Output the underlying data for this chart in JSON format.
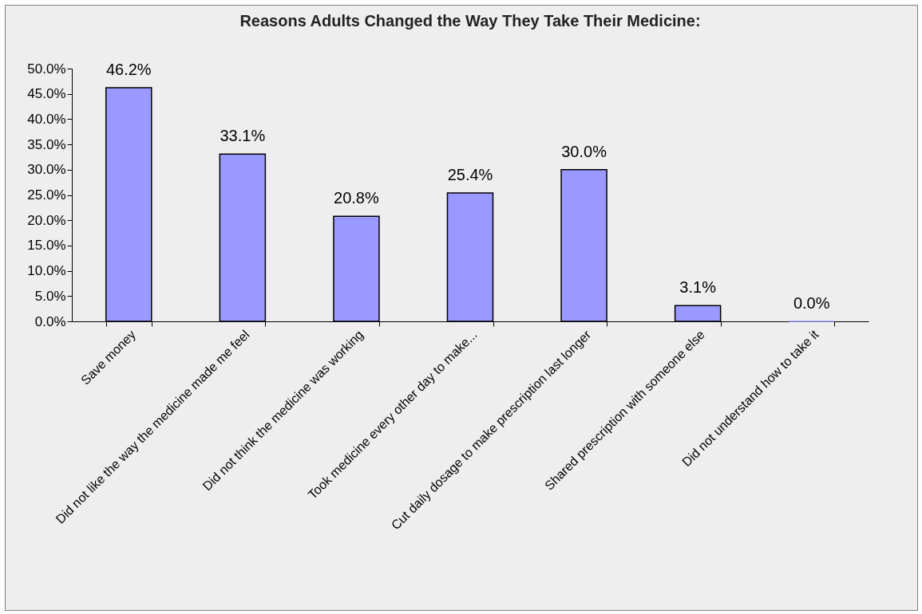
{
  "chart_data": {
    "type": "bar",
    "title": "Reasons Adults Changed the Way They Take Their Medicine:",
    "categories": [
      "Save money",
      "Did not like the way the medicine made me feel",
      "Did not think the medicine was working",
      "Took medicine every other day to make...",
      "Cut daily dosage to make prescription last longer",
      "Shared prescription with someone else",
      "Did not understand how to take it"
    ],
    "values": [
      46.2,
      33.1,
      20.8,
      25.4,
      30.0,
      3.1,
      0.0
    ],
    "value_labels": [
      "46.2%",
      "33.1%",
      "20.8%",
      "25.4%",
      "30.0%",
      "3.1%",
      "0.0%"
    ],
    "color": "#9999ff",
    "ylim": [
      0,
      50
    ],
    "yticks": [
      {
        "value": 0,
        "label": "0.0%"
      },
      {
        "value": 5,
        "label": "5.0%"
      },
      {
        "value": 10,
        "label": "10.0%"
      },
      {
        "value": 15,
        "label": "15.0%"
      },
      {
        "value": 20,
        "label": "20.0%"
      },
      {
        "value": 25,
        "label": "25.0%"
      },
      {
        "value": 30,
        "label": "30.0%"
      },
      {
        "value": 35,
        "label": "35.0%"
      },
      {
        "value": 40,
        "label": "40.0%"
      },
      {
        "value": 45,
        "label": "45.0%"
      },
      {
        "value": 50,
        "label": "50.0%"
      }
    ],
    "grid": false
  }
}
